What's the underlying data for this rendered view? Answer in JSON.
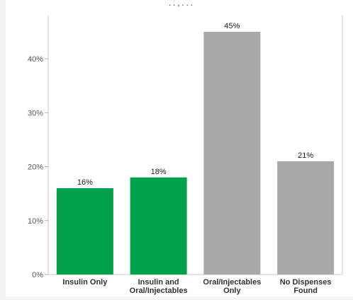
{
  "chart_data": {
    "type": "bar",
    "title_fragment": ". . , . . .",
    "categories": [
      [
        "Insulin Only"
      ],
      [
        "Insulin and",
        "Oral/Injectables"
      ],
      [
        "Oral/Injectables",
        "Only"
      ],
      [
        "No Dispenses",
        "Found"
      ]
    ],
    "values": [
      16,
      18,
      45,
      21
    ],
    "data_labels": [
      "16%",
      "18%",
      "45%",
      "21%"
    ],
    "bar_colors": [
      "#00a14b",
      "#00a14b",
      "#a9a9a9",
      "#a9a9a9"
    ],
    "ylim": [
      0,
      48
    ],
    "yticks": [
      0,
      10,
      20,
      30,
      40
    ],
    "ytick_labels": [
      "0%",
      "10%",
      "20%",
      "30%",
      "40%"
    ],
    "grid": false,
    "legend": "none"
  }
}
